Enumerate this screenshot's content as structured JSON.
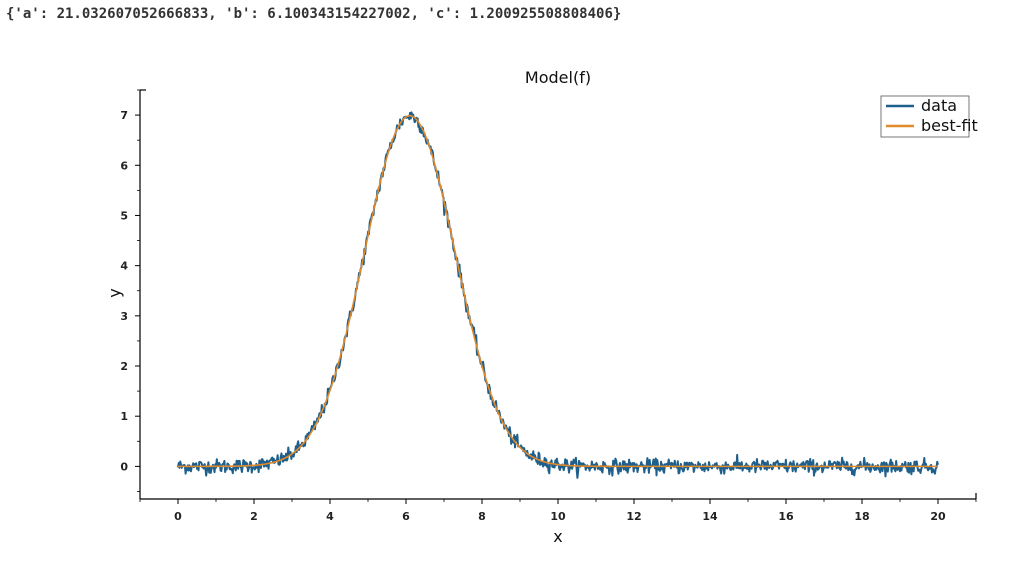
{
  "output": {
    "text": "{'a': 21.032607052666833, 'b': 6.100343154227002, 'c': 1.200925508808406}"
  },
  "chart_data": {
    "type": "line",
    "title": "Model(f)",
    "xlabel": "x",
    "ylabel": "y",
    "xlim": [
      -1,
      21
    ],
    "ylim": [
      -0.65,
      7.5
    ],
    "xticks": [
      0,
      2,
      4,
      6,
      8,
      10,
      12,
      14,
      16,
      18,
      20
    ],
    "yticks": [
      0,
      1,
      2,
      3,
      4,
      5,
      6,
      7
    ],
    "grid": false,
    "legend_position": "top-right",
    "model": {
      "a": 21.032607052666833,
      "b": 6.100343154227002,
      "c": 1.200925508808406
    },
    "noise_sd": 0.07,
    "x_range": [
      0,
      20
    ],
    "num_points": 1000,
    "series": [
      {
        "name": "data",
        "color": "#1f5f8b",
        "kind": "noisy samples of the model"
      },
      {
        "name": "best-fit",
        "color": "#e08a2c",
        "kind": "a * exp(-(x-b)^2 / (2 c^2)) / (sqrt(2 pi) c)"
      }
    ]
  }
}
